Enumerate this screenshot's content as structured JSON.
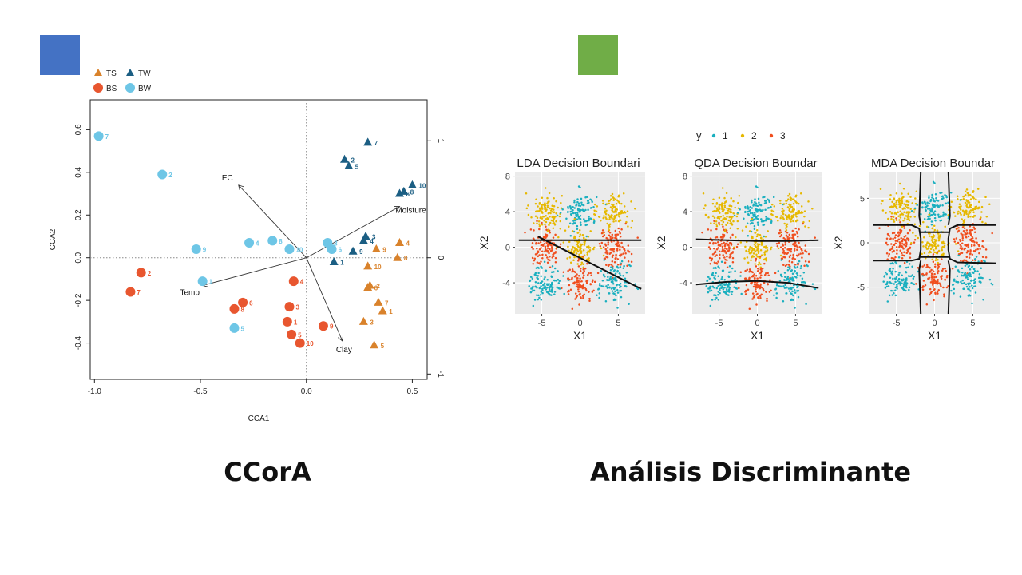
{
  "slide": {
    "left_caption": "CCorA",
    "right_caption": "Análisis Discriminante",
    "left_square_color": "#4472C4",
    "right_square_color": "#70AD47"
  },
  "chart_data": [
    {
      "type": "scatter",
      "title": "",
      "xlabel": "CCA1",
      "ylabel": "CCA2",
      "xlim": [
        -1.02,
        0.57
      ],
      "ylim": [
        -0.57,
        0.74
      ],
      "x_ticks": [
        "-1.0",
        "-0.5",
        "0.0",
        "0.5"
      ],
      "x_tick_values": [
        -1.0,
        -0.5,
        0.0,
        0.5
      ],
      "y_ticks": [
        "-0.4",
        "-0.2",
        "0.0",
        "0.2",
        "0.4",
        "0.6"
      ],
      "y_tick_values": [
        -0.4,
        -0.2,
        0.0,
        0.2,
        0.4,
        0.6
      ],
      "right_axis_ticks": [
        "-1",
        "0",
        "1"
      ],
      "right_axis_tick_values": [
        -0.545,
        0.0,
        0.548
      ],
      "legend": [
        "TS",
        "TW",
        "BS",
        "BW"
      ],
      "legend_position": "top-left",
      "colors": {
        "TS": "#D9822B",
        "TW": "#1B5E83",
        "BS": "#E8562F",
        "BW": "#6EC6E6"
      },
      "series": [
        {
          "name": "TS",
          "marker": "triangle",
          "points": [
            {
              "label": "1",
              "x": 0.36,
              "y": -0.25
            },
            {
              "label": "2",
              "x": 0.3,
              "y": -0.13
            },
            {
              "label": "3",
              "x": 0.27,
              "y": -0.3
            },
            {
              "label": "4",
              "x": 0.44,
              "y": 0.07
            },
            {
              "label": "5",
              "x": 0.32,
              "y": -0.41
            },
            {
              "label": "6",
              "x": 0.29,
              "y": -0.14
            },
            {
              "label": "7",
              "x": 0.34,
              "y": -0.21
            },
            {
              "label": "8",
              "x": 0.43,
              "y": 0.0
            },
            {
              "label": "9",
              "x": 0.33,
              "y": 0.04
            },
            {
              "label": "10",
              "x": 0.29,
              "y": -0.04
            }
          ]
        },
        {
          "name": "TW",
          "marker": "triangle",
          "points": [
            {
              "label": "1",
              "x": 0.13,
              "y": -0.02
            },
            {
              "label": "2",
              "x": 0.18,
              "y": 0.46
            },
            {
              "label": "3",
              "x": 0.28,
              "y": 0.1
            },
            {
              "label": "4",
              "x": 0.27,
              "y": 0.08
            },
            {
              "label": "5",
              "x": 0.2,
              "y": 0.43
            },
            {
              "label": "6",
              "x": 0.44,
              "y": 0.3
            },
            {
              "label": "7",
              "x": 0.29,
              "y": 0.54
            },
            {
              "label": "8",
              "x": 0.46,
              "y": 0.31
            },
            {
              "label": "9",
              "x": 0.22,
              "y": 0.03
            },
            {
              "label": "10",
              "x": 0.5,
              "y": 0.34
            }
          ]
        },
        {
          "name": "BS",
          "marker": "circle",
          "points": [
            {
              "label": "1",
              "x": -0.09,
              "y": -0.3
            },
            {
              "label": "2",
              "x": -0.78,
              "y": -0.07
            },
            {
              "label": "3",
              "x": -0.08,
              "y": -0.23
            },
            {
              "label": "4",
              "x": -0.06,
              "y": -0.11
            },
            {
              "label": "5",
              "x": -0.07,
              "y": -0.36
            },
            {
              "label": "6",
              "x": -0.3,
              "y": -0.21
            },
            {
              "label": "7",
              "x": -0.83,
              "y": -0.16
            },
            {
              "label": "8",
              "x": -0.34,
              "y": -0.24
            },
            {
              "label": "9",
              "x": 0.08,
              "y": -0.32
            },
            {
              "label": "10",
              "x": -0.03,
              "y": -0.4
            }
          ]
        },
        {
          "name": "BW",
          "marker": "circle",
          "points": [
            {
              "label": "1",
              "x": -0.49,
              "y": -0.11
            },
            {
              "label": "2",
              "x": -0.68,
              "y": 0.39
            },
            {
              "label": "3",
              "x": 0.1,
              "y": 0.07
            },
            {
              "label": "4",
              "x": -0.27,
              "y": 0.07
            },
            {
              "label": "5",
              "x": -0.34,
              "y": -0.33
            },
            {
              "label": "6",
              "x": 0.12,
              "y": 0.04
            },
            {
              "label": "7",
              "x": -0.98,
              "y": 0.57
            },
            {
              "label": "8",
              "x": -0.16,
              "y": 0.08
            },
            {
              "label": "9",
              "x": -0.52,
              "y": 0.04
            },
            {
              "label": "10",
              "x": -0.08,
              "y": 0.04
            }
          ]
        }
      ],
      "biplot_arrows": [
        {
          "label": "EC",
          "x": -0.32,
          "y": 0.34
        },
        {
          "label": "Moisture",
          "x": 0.44,
          "y": 0.24
        },
        {
          "label": "Temp",
          "x": -0.49,
          "y": -0.13
        },
        {
          "label": "Clay",
          "x": 0.17,
          "y": -0.39
        }
      ]
    },
    {
      "type": "scatter",
      "legend_title": "y",
      "legend": [
        "1",
        "2",
        "3"
      ],
      "legend_position": "top",
      "colors": {
        "1": "#1AAFBF",
        "2": "#E6B800",
        "3": "#F04E1E"
      },
      "facets": [
        {
          "title": "LDA Decision Boundari",
          "xlabel": "X1",
          "ylabel": "X2",
          "xlim": [
            -8.5,
            8.5
          ],
          "ylim": [
            -7.5,
            8.5
          ],
          "x_ticks": [
            "-5",
            "0",
            "5"
          ],
          "x_tick_values": [
            -5,
            0,
            5
          ],
          "y_ticks": [
            "-4",
            "0",
            "4",
            "8"
          ],
          "y_tick_values": [
            -4,
            0,
            4,
            8
          ],
          "boundaries": [
            [
              [
                -8,
                0.8
              ],
              [
                8,
                0.8
              ]
            ],
            [
              [
                -5.5,
                1.2
              ],
              [
                8,
                -4.7
              ]
            ]
          ]
        },
        {
          "title": "QDA Decision Boundar",
          "xlabel": "X1",
          "ylabel": "X2",
          "xlim": [
            -8.5,
            8.5
          ],
          "ylim": [
            -7.5,
            8.5
          ],
          "x_ticks": [
            "-5",
            "0",
            "5"
          ],
          "x_tick_values": [
            -5,
            0,
            5
          ],
          "y_ticks": [
            "-4",
            "0",
            "4",
            "8"
          ],
          "y_tick_values": [
            -4,
            0,
            4,
            8
          ],
          "boundaries": [
            [
              [
                -8,
                0.9
              ],
              [
                -4,
                0.8
              ],
              [
                0,
                0.7
              ],
              [
                4,
                0.7
              ],
              [
                8,
                0.8
              ]
            ],
            [
              [
                -8,
                -4.2
              ],
              [
                -4,
                -3.9
              ],
              [
                0,
                -3.8
              ],
              [
                4,
                -4.0
              ],
              [
                8,
                -4.6
              ]
            ]
          ]
        },
        {
          "title": "MDA Decision Boundar",
          "xlabel": "X1",
          "ylabel": "X2",
          "xlim": [
            -8.5,
            8.5
          ],
          "ylim": [
            -8.0,
            8.0
          ],
          "x_ticks": [
            "-5",
            "0",
            "5"
          ],
          "x_tick_values": [
            -5,
            0,
            5
          ],
          "y_ticks": [
            "-5",
            "0",
            "5"
          ],
          "y_tick_values": [
            -5,
            0,
            5
          ],
          "boundaries": [
            [
              [
                -8,
                2.0
              ],
              [
                -3,
                2.0
              ],
              [
                -2,
                1.6
              ],
              [
                -1.8,
                0.5
              ],
              [
                -1.8,
                -0.8
              ],
              [
                -2,
                -1.8
              ],
              [
                -3,
                -2.0
              ],
              [
                -8,
                -2.0
              ]
            ],
            [
              [
                -1.8,
                8
              ],
              [
                -2,
                3
              ],
              [
                -1.8,
                2
              ]
            ],
            [
              [
                -1.8,
                -2
              ],
              [
                -2,
                -3
              ],
              [
                -1.8,
                -8
              ]
            ],
            [
              [
                8,
                2.0
              ],
              [
                3,
                2.0
              ],
              [
                2,
                1.6
              ],
              [
                1.8,
                0.5
              ],
              [
                1.8,
                -0.8
              ],
              [
                2,
                -1.8
              ],
              [
                3,
                -2.2
              ],
              [
                8,
                -2.3
              ]
            ],
            [
              [
                1.8,
                8
              ],
              [
                2,
                3
              ],
              [
                1.8,
                2
              ]
            ],
            [
              [
                1.8,
                -2
              ],
              [
                2,
                -3
              ],
              [
                1.8,
                -8
              ]
            ],
            [
              [
                -2,
                1.2
              ],
              [
                2,
                1.2
              ]
            ],
            [
              [
                -2,
                -1.6
              ],
              [
                2,
                -1.6
              ]
            ]
          ]
        }
      ],
      "clusters": [
        {
          "class": "2",
          "cx": -4.5,
          "cy": 4
        },
        {
          "class": "1",
          "cx": 0,
          "cy": 4
        },
        {
          "class": "2",
          "cx": 4.5,
          "cy": 4
        },
        {
          "class": "3",
          "cx": -4.5,
          "cy": 0
        },
        {
          "class": "2",
          "cx": 0,
          "cy": 0
        },
        {
          "class": "3",
          "cx": 4.5,
          "cy": 0
        },
        {
          "class": "1",
          "cx": -4.5,
          "cy": -4
        },
        {
          "class": "3",
          "cx": 0,
          "cy": -4
        },
        {
          "class": "1",
          "cx": 4.5,
          "cy": -4
        }
      ],
      "points_per_cluster": 110
    }
  ]
}
